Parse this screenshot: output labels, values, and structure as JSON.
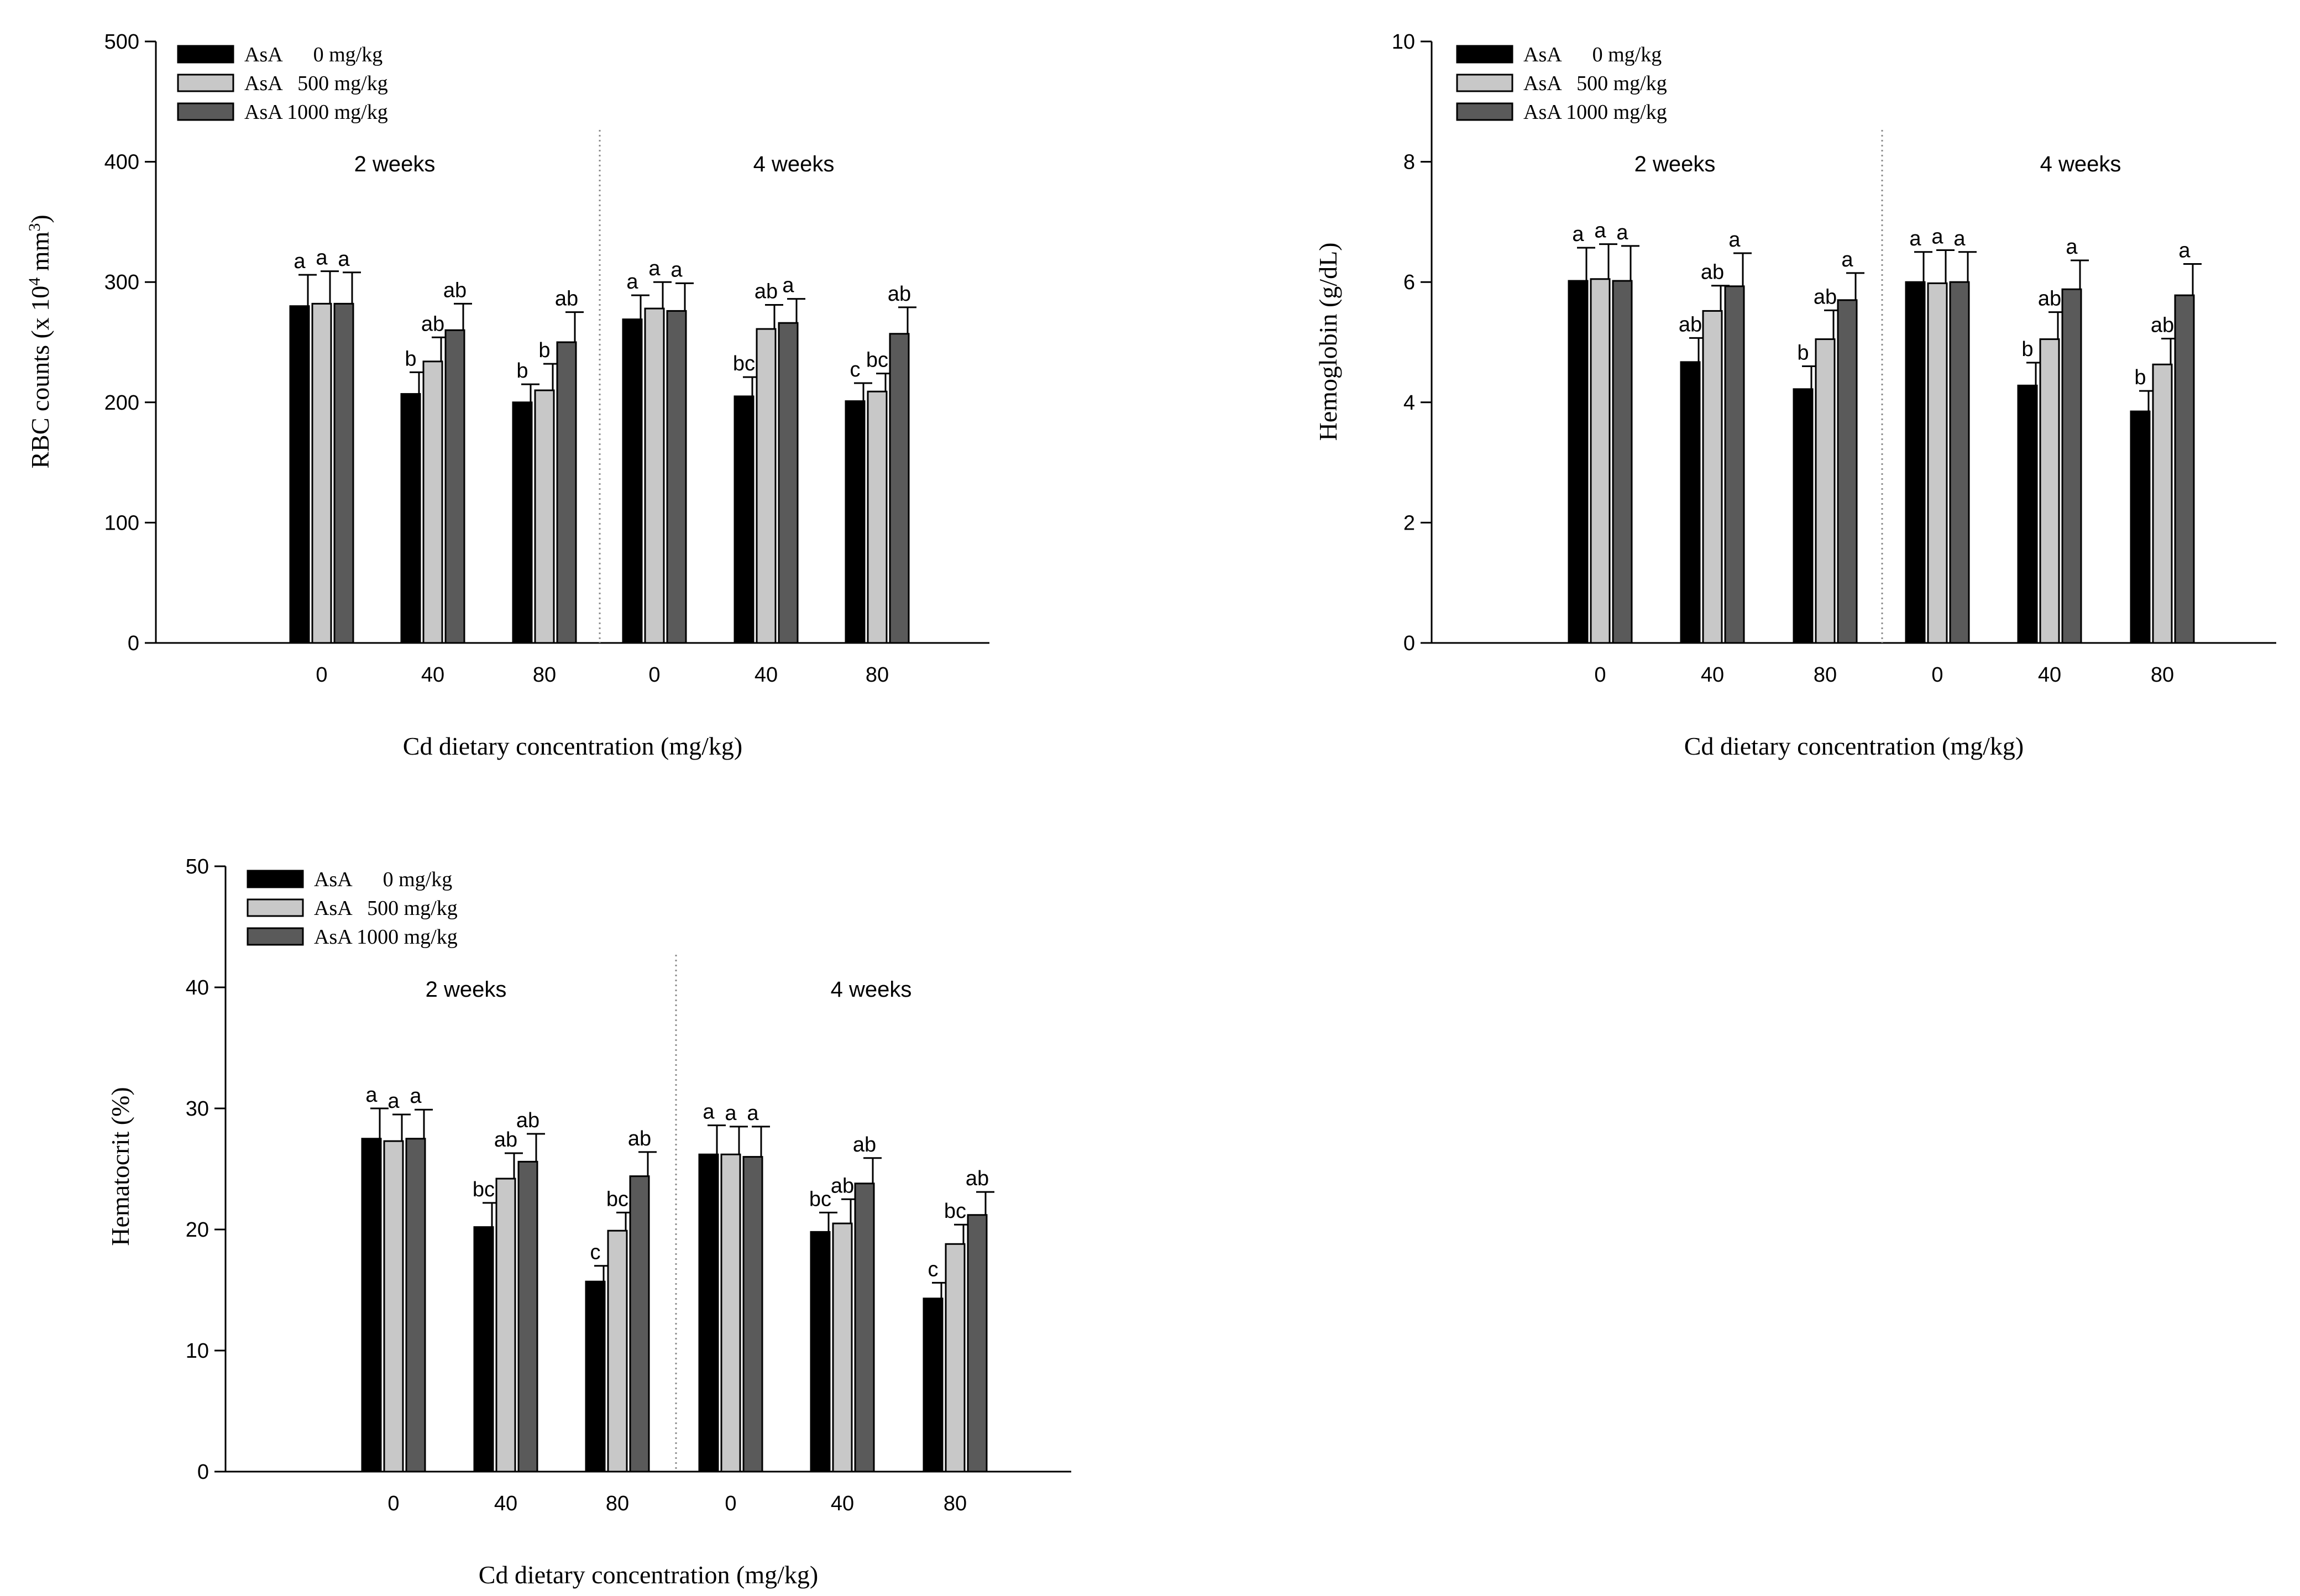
{
  "colors": {
    "asa0": "#000000",
    "asa500": "#c8c8c8",
    "asa1000": "#5a5a5a",
    "axis": "#000000",
    "divider": "#8c8c8c"
  },
  "chart_data": [
    {
      "type": "bar",
      "ylabel_pre": "RBC counts (x 10",
      "ylabel_sup1": "4",
      "ylabel_mid": " mm",
      "ylabel_sup2": "3",
      "ylabel_post": ")",
      "xlabel": "Cd dietary concentration (mg/kg)",
      "ylim": [
        0,
        500
      ],
      "yticks": [
        "0",
        "100",
        "200",
        "300",
        "400",
        "500"
      ],
      "categories": [
        "0",
        "40",
        "80",
        "0",
        "40",
        "80"
      ],
      "groups": [
        "2 weeks",
        "4 weeks"
      ],
      "legend": [
        "AsA      0 mg/kg",
        "AsA   500 mg/kg",
        "AsA 1000 mg/kg"
      ],
      "series": [
        {
          "name": "AsA 0 mg/kg",
          "values": [
            280,
            207,
            200,
            269,
            205,
            201
          ],
          "errors": [
            26,
            18,
            15,
            20,
            16,
            15
          ],
          "letters": [
            "a",
            "b",
            "b",
            "a",
            "bc",
            "c"
          ]
        },
        {
          "name": "AsA 500 mg/kg",
          "values": [
            282,
            234,
            210,
            278,
            261,
            209
          ],
          "errors": [
            27,
            20,
            22,
            22,
            20,
            15
          ],
          "letters": [
            "a",
            "ab",
            "b",
            "a",
            "ab",
            "bc"
          ]
        },
        {
          "name": "AsA 1000 mg/kg",
          "values": [
            282,
            260,
            250,
            276,
            266,
            257
          ],
          "errors": [
            26,
            22,
            25,
            23,
            20,
            22
          ],
          "letters": [
            "a",
            "ab",
            "ab",
            "a",
            "a",
            "ab"
          ]
        }
      ]
    },
    {
      "type": "bar",
      "ylabel": "Hemoglobin (g/dL)",
      "xlabel": "Cd dietary concentration (mg/kg)",
      "ylim": [
        0,
        10
      ],
      "yticks": [
        "0",
        "2",
        "4",
        "6",
        "8",
        "10"
      ],
      "categories": [
        "0",
        "40",
        "80",
        "0",
        "40",
        "80"
      ],
      "groups": [
        "2 weeks",
        "4 weeks"
      ],
      "legend": [
        "AsA      0 mg/kg",
        "AsA   500 mg/kg",
        "AsA 1000 mg/kg"
      ],
      "series": [
        {
          "name": "AsA 0 mg/kg",
          "values": [
            6.02,
            4.67,
            4.22,
            6.0,
            4.28,
            3.85
          ],
          "errors": [
            0.55,
            0.4,
            0.38,
            0.5,
            0.38,
            0.34
          ],
          "letters": [
            "a",
            "ab",
            "b",
            "a",
            "b",
            "b"
          ]
        },
        {
          "name": "AsA 500 mg/kg",
          "values": [
            6.05,
            5.52,
            5.05,
            5.98,
            5.05,
            4.63
          ],
          "errors": [
            0.58,
            0.42,
            0.48,
            0.55,
            0.45,
            0.43
          ],
          "letters": [
            "a",
            "ab",
            "ab",
            "a",
            "ab",
            "ab"
          ]
        },
        {
          "name": "AsA 1000 mg/kg",
          "values": [
            6.02,
            5.93,
            5.7,
            6.0,
            5.88,
            5.78
          ],
          "errors": [
            0.58,
            0.55,
            0.45,
            0.5,
            0.48,
            0.52
          ],
          "letters": [
            "a",
            "a",
            "a",
            "a",
            "a",
            "a"
          ]
        }
      ]
    },
    {
      "type": "bar",
      "ylabel": "Hematocrit (%)",
      "xlabel": "Cd dietary concentration (mg/kg)",
      "ylim": [
        0,
        50
      ],
      "yticks": [
        "0",
        "10",
        "20",
        "30",
        "40",
        "50"
      ],
      "categories": [
        "0",
        "40",
        "80",
        "0",
        "40",
        "80"
      ],
      "groups": [
        "2 weeks",
        "4 weeks"
      ],
      "legend": [
        "AsA      0 mg/kg",
        "AsA   500 mg/kg",
        "AsA 1000 mg/kg"
      ],
      "series": [
        {
          "name": "AsA 0 mg/kg",
          "values": [
            27.5,
            20.2,
            15.7,
            26.2,
            19.8,
            14.3
          ],
          "errors": [
            2.5,
            2.0,
            1.3,
            2.4,
            1.6,
            1.3
          ],
          "letters": [
            "a",
            "bc",
            "c",
            "a",
            "bc",
            "c"
          ]
        },
        {
          "name": "AsA 500 mg/kg",
          "values": [
            27.3,
            24.2,
            19.9,
            26.2,
            20.5,
            18.8
          ],
          "errors": [
            2.2,
            2.1,
            1.5,
            2.3,
            2.0,
            1.6
          ],
          "letters": [
            "a",
            "ab",
            "bc",
            "a",
            "ab",
            "bc"
          ]
        },
        {
          "name": "AsA 1000 mg/kg",
          "values": [
            27.5,
            25.6,
            24.4,
            26.0,
            23.8,
            21.2
          ],
          "errors": [
            2.4,
            2.3,
            2.0,
            2.5,
            2.1,
            1.9
          ],
          "letters": [
            "a",
            "ab",
            "ab",
            "a",
            "ab",
            "ab"
          ]
        }
      ]
    }
  ]
}
